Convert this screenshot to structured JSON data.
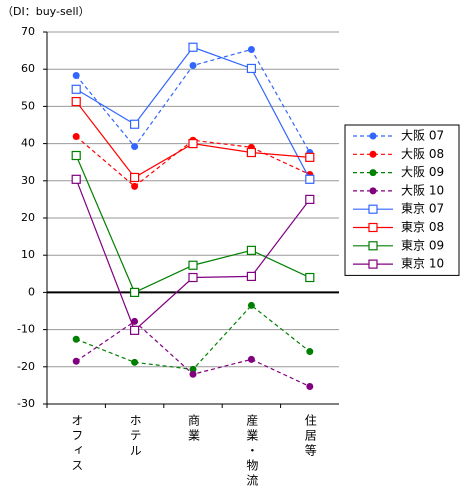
{
  "chart_data": {
    "type": "line",
    "y_label": "（DI：buy-sell）",
    "categories": [
      "オフィス",
      "ホテル",
      "商業",
      "産業・物流",
      "住居等"
    ],
    "ylim": [
      -30,
      70
    ],
    "yticks": [
      -30,
      -20,
      -10,
      0,
      10,
      20,
      30,
      40,
      50,
      60,
      70
    ],
    "grid": true,
    "legend": "right",
    "series": [
      {
        "name": "大阪 07",
        "color": "#3366ff",
        "line_style": "dashed",
        "marker": "circle",
        "values": [
          58.3,
          39.2,
          61,
          65.3,
          37.6
        ]
      },
      {
        "name": "大阪 08",
        "color": "#ff0000",
        "line_style": "dashed",
        "marker": "circle",
        "values": [
          41.9,
          28.5,
          40.9,
          39,
          31.7
        ]
      },
      {
        "name": "大阪 09",
        "color": "#008000",
        "line_style": "dashed",
        "marker": "circle",
        "values": [
          -12.6,
          -18.8,
          -20.7,
          -3.5,
          -15.9
        ]
      },
      {
        "name": "大阪 10",
        "color": "#800080",
        "line_style": "dashed",
        "marker": "circle",
        "values": [
          -18.5,
          -7.8,
          -22,
          -18,
          -25.3
        ]
      },
      {
        "name": "東京 07",
        "color": "#3366ff",
        "line_style": "solid",
        "marker": "square",
        "values": [
          54.6,
          45.2,
          65.9,
          60.2,
          30.4
        ]
      },
      {
        "name": "東京 08",
        "color": "#ff0000",
        "line_style": "solid",
        "marker": "square",
        "values": [
          51.3,
          30.9,
          40,
          37.6,
          36.3
        ]
      },
      {
        "name": "東京 09",
        "color": "#008000",
        "line_style": "solid",
        "marker": "square",
        "values": [
          36.8,
          0,
          7.3,
          11.3,
          4
        ]
      },
      {
        "name": "東京 10",
        "color": "#800080",
        "line_style": "solid",
        "marker": "square",
        "values": [
          30.4,
          -10.2,
          4,
          4.3,
          25
        ]
      }
    ]
  }
}
